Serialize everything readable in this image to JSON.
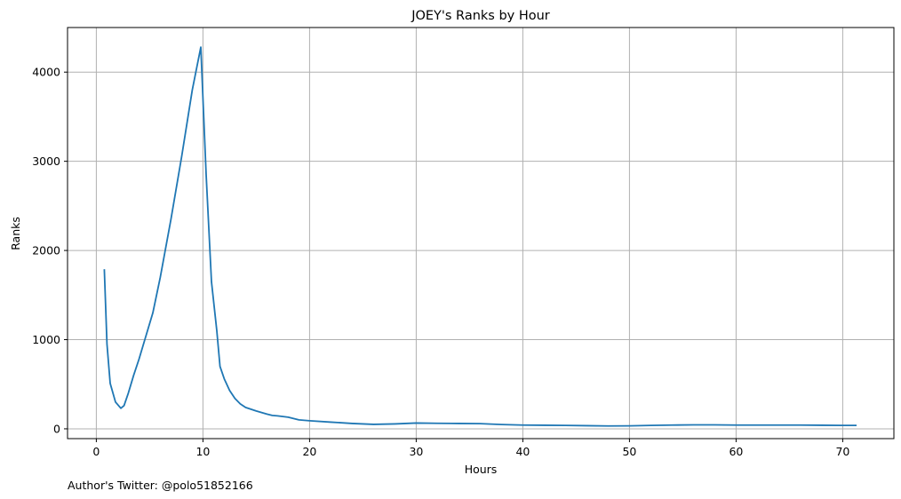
{
  "chart_data": {
    "type": "line",
    "title": "JOEY's Ranks by Hour",
    "xlabel": "Hours",
    "ylabel": "Ranks",
    "xlim": [
      -2.7,
      74.8
    ],
    "ylim": [
      -110,
      4500
    ],
    "xticks": [
      0,
      10,
      20,
      30,
      40,
      50,
      60,
      70
    ],
    "yticks": [
      0,
      1000,
      2000,
      3000,
      4000
    ],
    "grid": true,
    "series": [
      {
        "color": "#1f77b4",
        "x": [
          0.75,
          1.0,
          1.3,
          1.8,
          2.3,
          2.6,
          3.0,
          3.5,
          4.0,
          4.5,
          5.3,
          6.0,
          7.0,
          8.0,
          9.0,
          9.8,
          10.3,
          10.8,
          11.3,
          11.6,
          12.0,
          12.5,
          13.0,
          13.5,
          14.0,
          15.0,
          16.0,
          16.5,
          17.0,
          18.0,
          19.0,
          20.0,
          22.0,
          24.0,
          26.0,
          28.0,
          30.0,
          32.0,
          34.0,
          36.0,
          38.0,
          40.0,
          42.0,
          44.0,
          46.0,
          48.0,
          50.0,
          52.0,
          54.0,
          56.0,
          58.0,
          60.0,
          62.0,
          64.0,
          66.0,
          68.0,
          70.0,
          71.3
        ],
        "y": [
          1790,
          950,
          510,
          300,
          230,
          260,
          400,
          600,
          780,
          980,
          1300,
          1700,
          2350,
          3050,
          3800,
          4280,
          2850,
          1650,
          1100,
          700,
          560,
          430,
          340,
          280,
          240,
          200,
          165,
          150,
          145,
          130,
          100,
          90,
          75,
          60,
          50,
          55,
          65,
          62,
          60,
          58,
          48,
          42,
          40,
          38,
          35,
          32,
          33,
          38,
          42,
          44,
          44,
          42,
          42,
          42,
          42,
          40,
          38,
          38
        ]
      }
    ]
  },
  "footer": "Author's Twitter: @polo51852166"
}
